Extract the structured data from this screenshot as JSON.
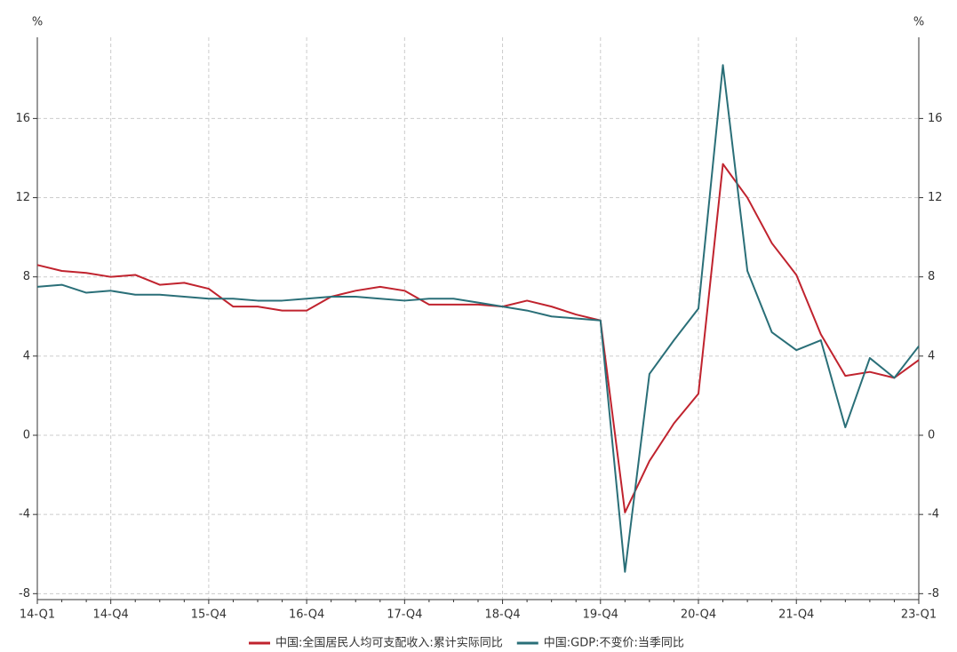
{
  "chart_data": {
    "type": "line",
    "y_label": "%",
    "y2_label": "%",
    "categories": [
      "14-Q1",
      null,
      null,
      "14-Q4",
      null,
      null,
      null,
      "15-Q4",
      null,
      null,
      null,
      "16-Q4",
      null,
      null,
      null,
      "17-Q4",
      null,
      null,
      null,
      "18-Q4",
      null,
      null,
      null,
      "19-Q4",
      null,
      null,
      null,
      "20-Q4",
      null,
      null,
      null,
      "21-Q4",
      null,
      null,
      null,
      null,
      "23-Q1"
    ],
    "series": [
      {
        "name": "中国:全国居民人均可支配收入:累计实际同比",
        "color": "#c0232e",
        "values": [
          8.6,
          8.3,
          8.2,
          8.0,
          8.1,
          7.6,
          7.7,
          7.4,
          6.5,
          6.5,
          6.3,
          6.3,
          7.0,
          7.3,
          7.5,
          7.3,
          6.6,
          6.6,
          6.6,
          6.5,
          6.8,
          6.5,
          6.1,
          5.8,
          -3.9,
          -1.3,
          0.6,
          2.1,
          13.7,
          12.0,
          9.7,
          8.1,
          5.1,
          3.0,
          3.2,
          2.9,
          3.8
        ]
      },
      {
        "name": "中国:GDP:不变价:当季同比",
        "color": "#2a6f78",
        "axis": "y2",
        "values": [
          7.5,
          7.6,
          7.2,
          7.3,
          7.1,
          7.1,
          7.0,
          6.9,
          6.9,
          6.8,
          6.8,
          6.9,
          7.0,
          7.0,
          6.9,
          6.8,
          6.9,
          6.9,
          6.7,
          6.5,
          6.3,
          6.0,
          5.9,
          5.8,
          -6.9,
          3.1,
          4.8,
          6.4,
          18.7,
          8.3,
          5.2,
          4.3,
          4.8,
          0.4,
          3.9,
          2.9,
          4.5
        ]
      }
    ],
    "ylim": [
      -8.3,
      20.1
    ],
    "yticks": [
      -8,
      -4,
      0,
      4,
      8,
      12,
      16
    ],
    "y2lim": [
      -8.3,
      20.1
    ],
    "y2ticks": [
      -8,
      -4,
      0,
      4,
      8,
      12,
      16
    ],
    "grid": true,
    "legend": "bottom"
  }
}
